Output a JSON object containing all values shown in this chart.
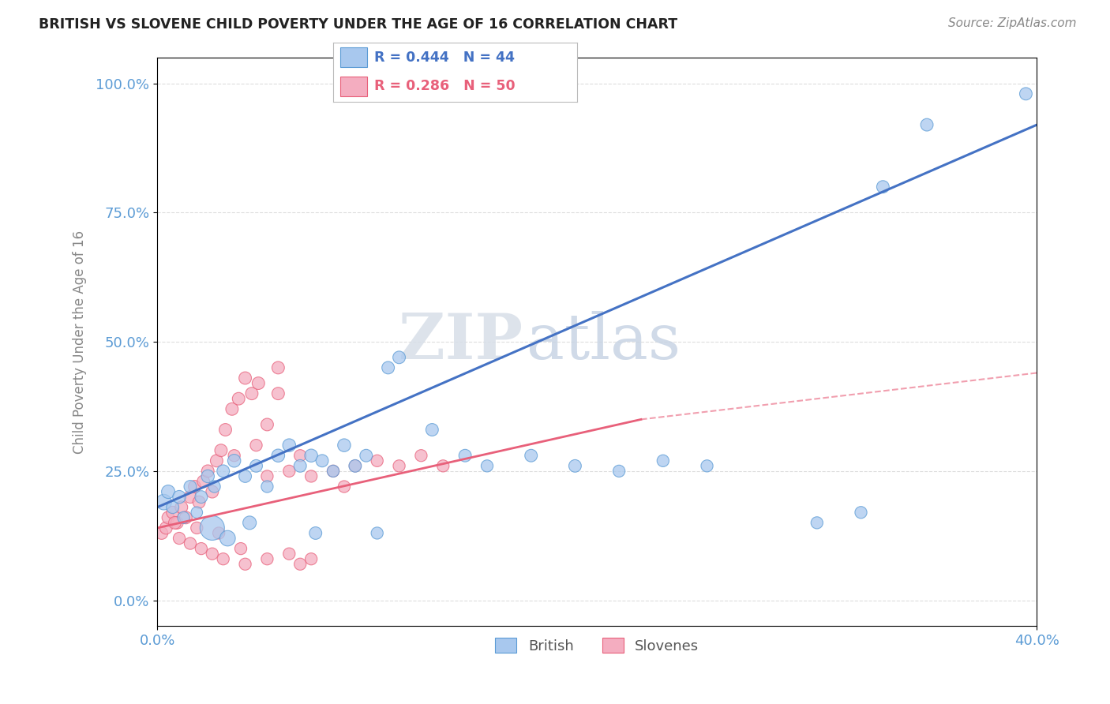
{
  "title": "BRITISH VS SLOVENE CHILD POVERTY UNDER THE AGE OF 16 CORRELATION CHART",
  "source": "Source: ZipAtlas.com",
  "ylabel": "Child Poverty Under the Age of 16",
  "yticks": [
    "0.0%",
    "25.0%",
    "50.0%",
    "75.0%",
    "100.0%"
  ],
  "ytick_vals": [
    0,
    25,
    50,
    75,
    100
  ],
  "xlim": [
    0,
    40
  ],
  "ylim": [
    -5,
    105
  ],
  "watermark_zip": "ZIP",
  "watermark_atlas": "atlas",
  "british_color": "#a8c8ee",
  "slovene_color": "#f4adc0",
  "british_edge_color": "#5b9bd5",
  "slovene_edge_color": "#e8607a",
  "british_line_color": "#4472c4",
  "slovene_line_color": "#e8607a",
  "brit_line_x0": 0,
  "brit_line_y0": 18,
  "brit_line_x1": 40,
  "brit_line_y1": 92,
  "slv_solid_x0": 0,
  "slv_solid_y0": 14,
  "slv_solid_x1": 22,
  "slv_solid_y1": 35,
  "slv_dash_x0": 22,
  "slv_dash_y0": 35,
  "slv_dash_x1": 40,
  "slv_dash_y1": 44,
  "british_points": [
    [
      0.3,
      19
    ],
    [
      0.5,
      21
    ],
    [
      0.7,
      18
    ],
    [
      1.0,
      20
    ],
    [
      1.2,
      16
    ],
    [
      1.5,
      22
    ],
    [
      1.8,
      17
    ],
    [
      2.0,
      20
    ],
    [
      2.3,
      24
    ],
    [
      2.6,
      22
    ],
    [
      3.0,
      25
    ],
    [
      3.5,
      27
    ],
    [
      4.0,
      24
    ],
    [
      4.5,
      26
    ],
    [
      5.0,
      22
    ],
    [
      5.5,
      28
    ],
    [
      6.0,
      30
    ],
    [
      6.5,
      26
    ],
    [
      7.0,
      28
    ],
    [
      7.5,
      27
    ],
    [
      8.0,
      25
    ],
    [
      8.5,
      30
    ],
    [
      9.0,
      26
    ],
    [
      9.5,
      28
    ],
    [
      10.5,
      45
    ],
    [
      11.0,
      47
    ],
    [
      12.5,
      33
    ],
    [
      14.0,
      28
    ],
    [
      15.0,
      26
    ],
    [
      17.0,
      28
    ],
    [
      19.0,
      26
    ],
    [
      21.0,
      25
    ],
    [
      23.0,
      27
    ],
    [
      25.0,
      26
    ],
    [
      30.0,
      15
    ],
    [
      32.0,
      17
    ],
    [
      33.0,
      80
    ],
    [
      35.0,
      92
    ],
    [
      39.5,
      98
    ],
    [
      2.5,
      14
    ],
    [
      3.2,
      12
    ],
    [
      4.2,
      15
    ],
    [
      7.2,
      13
    ],
    [
      10.0,
      13
    ]
  ],
  "slovene_points": [
    [
      0.2,
      13
    ],
    [
      0.4,
      14
    ],
    [
      0.5,
      16
    ],
    [
      0.7,
      17
    ],
    [
      0.9,
      15
    ],
    [
      1.1,
      18
    ],
    [
      1.3,
      16
    ],
    [
      1.5,
      20
    ],
    [
      1.7,
      22
    ],
    [
      1.9,
      19
    ],
    [
      2.1,
      23
    ],
    [
      2.3,
      25
    ],
    [
      2.5,
      21
    ],
    [
      2.7,
      27
    ],
    [
      2.9,
      29
    ],
    [
      3.1,
      33
    ],
    [
      3.4,
      37
    ],
    [
      3.7,
      39
    ],
    [
      4.0,
      43
    ],
    [
      4.3,
      40
    ],
    [
      4.6,
      42
    ],
    [
      5.0,
      34
    ],
    [
      5.5,
      40
    ],
    [
      6.0,
      25
    ],
    [
      6.5,
      28
    ],
    [
      7.0,
      24
    ],
    [
      8.0,
      25
    ],
    [
      8.5,
      22
    ],
    [
      9.0,
      26
    ],
    [
      10.0,
      27
    ],
    [
      11.0,
      26
    ],
    [
      12.0,
      28
    ],
    [
      13.0,
      26
    ],
    [
      5.5,
      45
    ],
    [
      3.5,
      28
    ],
    [
      4.5,
      30
    ],
    [
      5.0,
      24
    ],
    [
      1.0,
      12
    ],
    [
      1.5,
      11
    ],
    [
      2.0,
      10
    ],
    [
      2.5,
      9
    ],
    [
      3.0,
      8
    ],
    [
      4.0,
      7
    ],
    [
      5.0,
      8
    ],
    [
      6.0,
      9
    ],
    [
      7.0,
      8
    ],
    [
      1.8,
      14
    ],
    [
      2.8,
      13
    ],
    [
      3.8,
      10
    ],
    [
      6.5,
      7
    ],
    [
      0.8,
      15
    ]
  ],
  "british_sizes": [
    200,
    150,
    130,
    140,
    120,
    130,
    110,
    130,
    140,
    120,
    130,
    140,
    130,
    130,
    120,
    140,
    140,
    130,
    140,
    130,
    120,
    140,
    130,
    130,
    130,
    130,
    130,
    130,
    120,
    130,
    130,
    120,
    120,
    120,
    120,
    120,
    130,
    130,
    130,
    500,
    200,
    150,
    130,
    120
  ],
  "slovene_sizes": [
    130,
    130,
    130,
    130,
    130,
    130,
    130,
    130,
    130,
    130,
    130,
    130,
    130,
    130,
    130,
    130,
    130,
    130,
    130,
    130,
    130,
    130,
    130,
    120,
    120,
    120,
    120,
    120,
    120,
    120,
    120,
    120,
    120,
    130,
    120,
    120,
    120,
    120,
    120,
    120,
    120,
    120,
    120,
    120,
    120,
    120,
    120,
    120,
    120,
    120,
    130
  ]
}
